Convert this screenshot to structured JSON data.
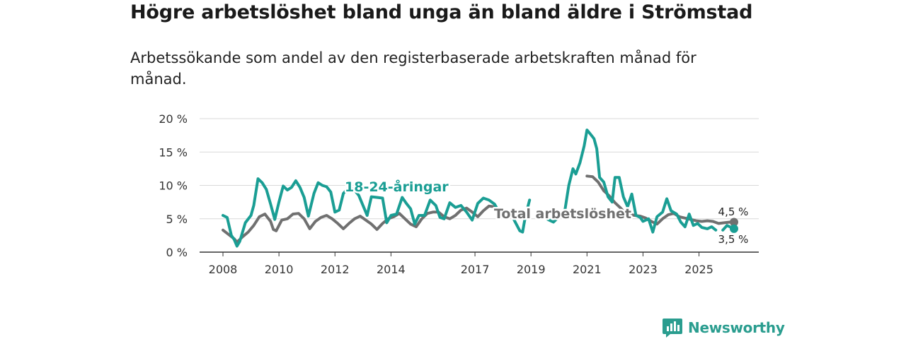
{
  "header": {
    "title": "Högre arbetslöshet bland unga än bland äldre i Strömstad",
    "subtitle": "Arbetssökande som andel av den registerbaserade arbetskraften månad för månad."
  },
  "brand": {
    "name": "Newsworthy"
  },
  "colors": {
    "youth": "#1a9e94",
    "total": "#707070",
    "grid": "#d9d9d9",
    "brand": "#2a9d8f"
  },
  "chart_data": {
    "type": "line",
    "title": "Högre arbetslöshet bland unga än bland äldre i Strömstad",
    "xlabel": "",
    "ylabel": "",
    "ylim": [
      0,
      20
    ],
    "xlim": [
      2008,
      2026.3
    ],
    "yticks": [
      {
        "value": 0,
        "label": "0 %"
      },
      {
        "value": 5,
        "label": "5 %"
      },
      {
        "value": 10,
        "label": "10 %"
      },
      {
        "value": 15,
        "label": "15 %"
      },
      {
        "value": 20,
        "label": "20 %"
      }
    ],
    "xticks": [
      {
        "value": 2008,
        "label": "2008"
      },
      {
        "value": 2010,
        "label": "2010"
      },
      {
        "value": 2012,
        "label": "2012"
      },
      {
        "value": 2014,
        "label": "2014"
      },
      {
        "value": 2017,
        "label": "2017"
      },
      {
        "value": 2019,
        "label": "2019"
      },
      {
        "value": 2021,
        "label": "2021"
      },
      {
        "value": 2023,
        "label": "2023"
      },
      {
        "value": 2025,
        "label": "2025"
      }
    ],
    "series": [
      {
        "name": "Total arbetslöshet",
        "label": "Total arbetslöshet",
        "end_label": "4,5 %",
        "end_value": 4.5,
        "points": [
          [
            2008.0,
            3.3
          ],
          [
            2008.4,
            2.0
          ],
          [
            2008.5,
            1.5
          ],
          [
            2008.7,
            2.3
          ],
          [
            2008.9,
            3.0
          ],
          [
            2009.1,
            4.0
          ],
          [
            2009.3,
            5.3
          ],
          [
            2009.5,
            5.7
          ],
          [
            2009.7,
            4.6
          ],
          [
            2009.8,
            3.4
          ],
          [
            2009.9,
            3.2
          ],
          [
            2010.1,
            4.8
          ],
          [
            2010.3,
            5.0
          ],
          [
            2010.5,
            5.7
          ],
          [
            2010.7,
            5.8
          ],
          [
            2010.9,
            5.0
          ],
          [
            2011.1,
            3.5
          ],
          [
            2011.3,
            4.6
          ],
          [
            2011.5,
            5.2
          ],
          [
            2011.7,
            5.5
          ],
          [
            2011.9,
            5.0
          ],
          [
            2012.1,
            4.3
          ],
          [
            2012.3,
            3.5
          ],
          [
            2012.5,
            4.3
          ],
          [
            2012.7,
            5.0
          ],
          [
            2012.9,
            5.4
          ],
          [
            2013.1,
            4.8
          ],
          [
            2013.3,
            4.2
          ],
          [
            2013.5,
            3.4
          ],
          [
            2013.7,
            4.3
          ],
          [
            2013.9,
            5.0
          ],
          [
            2014.1,
            5.3
          ],
          [
            2014.3,
            5.8
          ],
          [
            2014.5,
            5.0
          ],
          [
            2014.7,
            4.2
          ],
          [
            2014.9,
            3.8
          ],
          [
            2015.1,
            5.0
          ],
          [
            2015.3,
            5.8
          ],
          [
            2015.5,
            6.0
          ],
          [
            2015.7,
            6.0
          ],
          [
            2015.9,
            5.3
          ],
          [
            2016.1,
            5.0
          ],
          [
            2016.3,
            5.5
          ],
          [
            2016.5,
            6.3
          ],
          [
            2016.7,
            6.6
          ],
          [
            2016.9,
            6.0
          ],
          [
            2017.1,
            5.3
          ],
          [
            2017.3,
            6.2
          ],
          [
            2017.5,
            6.9
          ],
          [
            2017.7,
            6.8
          ],
          [
            2017.9,
            5.6
          ],
          [
            2018.05,
            5.3
          ],
          null,
          [
            2021.0,
            11.4
          ],
          [
            2021.2,
            11.3
          ],
          [
            2021.4,
            10.5
          ],
          [
            2021.6,
            9.2
          ],
          [
            2021.8,
            8.4
          ],
          [
            2022.0,
            7.4
          ],
          [
            2022.2,
            6.6
          ],
          [
            2022.35,
            5.9
          ],
          [
            2022.5,
            5.7
          ],
          [
            2022.7,
            5.5
          ],
          [
            2022.9,
            5.4
          ],
          [
            2023.1,
            5.1
          ],
          [
            2023.3,
            4.6
          ],
          [
            2023.5,
            4.2
          ],
          [
            2023.7,
            5.0
          ],
          [
            2023.9,
            5.6
          ],
          [
            2024.1,
            5.8
          ],
          [
            2024.3,
            5.3
          ],
          [
            2024.5,
            5.1
          ],
          [
            2024.7,
            4.9
          ],
          [
            2024.9,
            4.7
          ],
          [
            2025.1,
            4.6
          ],
          [
            2025.3,
            4.7
          ],
          [
            2025.5,
            4.6
          ],
          [
            2025.7,
            4.3
          ],
          [
            2025.9,
            4.4
          ],
          [
            2026.1,
            4.5
          ],
          [
            2026.25,
            4.5
          ]
        ]
      },
      {
        "name": "18-24-åringar",
        "label": "18-24-åringar",
        "end_label": "3,5 %",
        "end_value": 3.5,
        "points": [
          [
            2008.0,
            5.5
          ],
          [
            2008.15,
            5.2
          ],
          [
            2008.3,
            2.5
          ],
          [
            2008.4,
            1.9
          ],
          [
            2008.5,
            0.9
          ],
          [
            2008.6,
            1.6
          ],
          [
            2008.8,
            4.4
          ],
          [
            2009.0,
            5.5
          ],
          [
            2009.1,
            7.0
          ],
          [
            2009.25,
            11.0
          ],
          [
            2009.4,
            10.4
          ],
          [
            2009.55,
            9.4
          ],
          [
            2009.7,
            7.2
          ],
          [
            2009.85,
            4.9
          ],
          [
            2010.0,
            7.5
          ],
          [
            2010.15,
            9.9
          ],
          [
            2010.3,
            9.3
          ],
          [
            2010.45,
            9.7
          ],
          [
            2010.6,
            10.7
          ],
          [
            2010.75,
            9.7
          ],
          [
            2010.9,
            8.2
          ],
          [
            2011.05,
            5.4
          ],
          [
            2011.25,
            8.8
          ],
          [
            2011.4,
            10.4
          ],
          [
            2011.55,
            10.0
          ],
          [
            2011.7,
            9.8
          ],
          [
            2011.85,
            9.0
          ],
          [
            2012.0,
            6.0
          ],
          [
            2012.15,
            6.3
          ],
          [
            2012.3,
            8.8
          ],
          [
            2012.5,
            9.7
          ],
          [
            2012.7,
            9.3
          ],
          [
            2012.85,
            8.5
          ],
          [
            2013.0,
            7.0
          ],
          [
            2013.15,
            5.5
          ],
          [
            2013.3,
            8.3
          ],
          [
            2013.5,
            8.2
          ],
          [
            2013.7,
            8.1
          ],
          [
            2013.85,
            4.4
          ],
          [
            2014.0,
            5.5
          ],
          [
            2014.2,
            5.7
          ],
          [
            2014.4,
            8.2
          ],
          [
            2014.55,
            7.3
          ],
          [
            2014.7,
            6.5
          ],
          [
            2014.85,
            4.2
          ],
          [
            2015.0,
            5.5
          ],
          [
            2015.2,
            5.5
          ],
          [
            2015.4,
            7.8
          ],
          [
            2015.6,
            7.0
          ],
          [
            2015.75,
            5.2
          ],
          [
            2015.9,
            5.0
          ],
          [
            2016.1,
            7.4
          ],
          [
            2016.3,
            6.7
          ],
          [
            2016.5,
            7.0
          ],
          [
            2016.7,
            6.0
          ],
          [
            2016.9,
            4.8
          ],
          [
            2017.1,
            7.3
          ],
          [
            2017.3,
            8.1
          ],
          [
            2017.5,
            7.8
          ],
          [
            2017.7,
            7.2
          ],
          [
            2017.9,
            5.7
          ],
          [
            2018.05,
            5.3
          ],
          null,
          [
            2018.4,
            4.8
          ],
          [
            2018.6,
            3.2
          ],
          [
            2018.7,
            3.0
          ],
          [
            2018.8,
            5.4
          ],
          [
            2018.95,
            7.8
          ],
          null,
          [
            2019.6,
            4.9
          ],
          [
            2019.8,
            4.5
          ],
          [
            2020.0,
            5.3
          ],
          [
            2020.2,
            6.0
          ],
          [
            2020.35,
            10.0
          ],
          [
            2020.5,
            12.5
          ],
          [
            2020.6,
            11.7
          ],
          [
            2020.75,
            13.4
          ],
          [
            2020.9,
            15.9
          ],
          [
            2021.0,
            18.3
          ],
          [
            2021.1,
            17.8
          ],
          [
            2021.25,
            17.0
          ],
          [
            2021.35,
            15.5
          ],
          [
            2021.45,
            11.2
          ],
          [
            2021.6,
            10.5
          ],
          [
            2021.75,
            8.3
          ],
          [
            2021.9,
            7.5
          ],
          [
            2022.0,
            11.2
          ],
          [
            2022.15,
            11.2
          ],
          [
            2022.3,
            8.3
          ],
          [
            2022.45,
            6.8
          ],
          [
            2022.6,
            8.7
          ],
          [
            2022.75,
            5.5
          ],
          [
            2022.9,
            5.2
          ],
          [
            2023.0,
            4.6
          ],
          [
            2023.2,
            5.0
          ],
          [
            2023.35,
            3.0
          ],
          [
            2023.5,
            5.3
          ],
          [
            2023.7,
            6.0
          ],
          [
            2023.85,
            8.0
          ],
          [
            2024.0,
            6.2
          ],
          [
            2024.2,
            5.7
          ],
          [
            2024.35,
            4.5
          ],
          [
            2024.5,
            3.8
          ],
          [
            2024.65,
            5.7
          ],
          [
            2024.8,
            4.0
          ],
          [
            2024.95,
            4.3
          ],
          [
            2025.1,
            3.7
          ],
          [
            2025.3,
            3.5
          ],
          [
            2025.45,
            3.8
          ],
          [
            2025.6,
            3.3
          ],
          null,
          [
            2025.85,
            3.3
          ],
          [
            2026.0,
            4.0
          ],
          [
            2026.25,
            3.5
          ]
        ]
      }
    ]
  }
}
